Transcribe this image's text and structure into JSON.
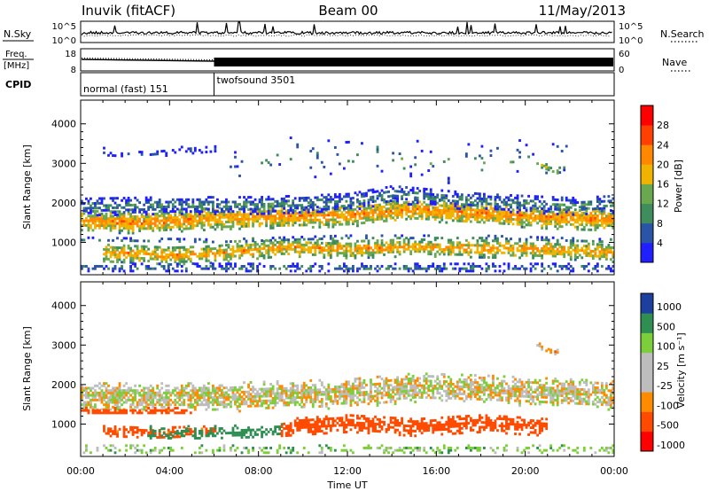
{
  "header": {
    "station": "Inuvik (fitACF)",
    "beam": "Beam 00",
    "date": "11/May/2013"
  },
  "nsky_panel": {
    "label": "N.Sky",
    "left_ticks": [
      "10^5",
      "10^0"
    ],
    "right_ticks": [
      "10^5",
      "10^0"
    ],
    "right_label": "N.Search",
    "right_label_style": "dotted"
  },
  "freq_panel": {
    "label_line1": "Freq.",
    "label_line2": "[MHz]",
    "left_ticks": [
      "18",
      "8"
    ],
    "right_ticks": [
      "60",
      "0"
    ],
    "right_label": "Nave",
    "right_label_style": "dotted"
  },
  "cpid_panel": {
    "label": "CPID",
    "modes": [
      {
        "name": "normal (fast) 151",
        "start_hour": 0,
        "end_hour": 6
      },
      {
        "name": "twofsound 3501",
        "start_hour": 6,
        "end_hour": 24
      }
    ]
  },
  "axes": {
    "xlabel": "Time UT",
    "x_ticks": [
      "00:00",
      "04:00",
      "08:00",
      "12:00",
      "16:00",
      "20:00",
      "00:00"
    ],
    "ylabel": "Slant Range [km]",
    "y_ticks": [
      "1000",
      "2000",
      "3000",
      "4000"
    ]
  },
  "colors": {
    "power": [
      "#1f1fff",
      "#2a54a8",
      "#3f8c5c",
      "#6aa84f",
      "#f0b400",
      "#ff8800",
      "#ff4000",
      "#ff0000"
    ],
    "velocity": [
      "#ff0000",
      "#ff4a00",
      "#ff8c00",
      "#bdbdbd",
      "#bdbdbd",
      "#7ccf3a",
      "#2f8f52",
      "#1c3fa0"
    ]
  },
  "chart_data": [
    {
      "type": "line",
      "name": "N.Sky / N.Search",
      "x_range": [
        0,
        24
      ],
      "yscale": "log",
      "ylim": [
        "10^0",
        "10^5"
      ]
    },
    {
      "type": "line",
      "name": "Freq. / Nave",
      "x_range": [
        0,
        24
      ],
      "ylim_left": [
        8,
        18
      ],
      "ylim_right": [
        0,
        60
      ]
    },
    {
      "type": "heatmap",
      "name": "Power",
      "xlabel": "Time UT",
      "ylabel": "Slant Range [km]",
      "x_range": [
        0,
        24
      ],
      "y_range": [
        180,
        4600
      ],
      "colorbar": {
        "label": "Power [dB]",
        "ticks": [
          "28",
          "24",
          "20",
          "16",
          "12",
          "8",
          "4"
        ],
        "range": [
          0,
          32
        ]
      },
      "bands": [
        {
          "start": 0,
          "end": 24,
          "centers": [
            [
              0,
              1500
            ],
            [
              3,
              1480
            ],
            [
              6,
              1580
            ],
            [
              9,
              1620
            ],
            [
              12,
              1650
            ],
            [
              15,
              1800
            ],
            [
              18,
              1700
            ],
            [
              21,
              1600
            ],
            [
              24,
              1550
            ]
          ],
          "half_width": 260,
          "value": 22,
          "density": 0.92
        },
        {
          "start": 0,
          "end": 24,
          "centers": [
            [
              0,
              1880
            ],
            [
              4,
              1920
            ],
            [
              8,
              1920
            ],
            [
              12,
              2000
            ],
            [
              14,
              2200
            ],
            [
              18,
              2000
            ],
            [
              22,
              1900
            ],
            [
              24,
              1950
            ]
          ],
          "half_width": 220,
          "value": 10,
          "density": 0.55
        },
        {
          "start": 1,
          "end": 24,
          "centers": [
            [
              1,
              720
            ],
            [
              4,
              640
            ],
            [
              6,
              680
            ],
            [
              9,
              850
            ],
            [
              12,
              800
            ],
            [
              15,
              850
            ],
            [
              18,
              820
            ],
            [
              21,
              800
            ],
            [
              24,
              700
            ]
          ],
          "half_width": 220,
          "value": 21,
          "density": 0.78
        },
        {
          "start": 0,
          "end": 24,
          "centers": [
            [
              0,
              1050
            ],
            [
              6,
              1000
            ],
            [
              12,
              1100
            ],
            [
              18,
              1100
            ],
            [
              24,
              1000
            ]
          ],
          "half_width": 60,
          "value": 12,
          "density": 0.35
        },
        {
          "start": 0,
          "end": 24,
          "centers": [
            [
              0,
              330
            ],
            [
              24,
              330
            ]
          ],
          "half_width": 110,
          "value": 9,
          "density": 0.45
        },
        {
          "start": 1,
          "end": 6,
          "centers": [
            [
              1,
              3250
            ],
            [
              3,
              3200
            ],
            [
              6,
              3350
            ]
          ],
          "half_width": 100,
          "value": 6,
          "density": 0.3
        },
        {
          "start": 6.5,
          "end": 22,
          "centers": [
            [
              6.5,
              3050
            ],
            [
              12,
              3200
            ],
            [
              16,
              3000
            ],
            [
              22,
              3100
            ]
          ],
          "half_width": 500,
          "value": 10,
          "density": 0.05
        },
        {
          "start": 20.5,
          "end": 21.5,
          "centers": [
            [
              20.5,
              2950
            ],
            [
              21.5,
              2750
            ]
          ],
          "half_width": 80,
          "value": 18,
          "density": 0.6
        }
      ]
    },
    {
      "type": "heatmap",
      "name": "Velocity",
      "xlabel": "Time UT",
      "ylabel": "Slant Range [km]",
      "x_range": [
        0,
        24
      ],
      "y_range": [
        180,
        4600
      ],
      "colorbar": {
        "label": "Velocity [m s⁻¹]",
        "ticks": [
          "1000",
          "500",
          "100",
          "25",
          "-25",
          "-100",
          "-500",
          "-1000"
        ],
        "range": [
          -1000,
          1000
        ]
      },
      "bands": [
        {
          "start": 0,
          "end": 24,
          "centers": [
            [
              0,
              1650
            ],
            [
              6,
              1650
            ],
            [
              12,
              1750
            ],
            [
              15,
              1900
            ],
            [
              18,
              1850
            ],
            [
              24,
              1700
            ]
          ],
          "half_width": 330,
          "value": 0,
          "density": 0.82
        },
        {
          "start": 0,
          "end": 5,
          "centers": [
            [
              0,
              1300
            ],
            [
              5,
              1300
            ]
          ],
          "half_width": 80,
          "value": -300,
          "density": 0.7
        },
        {
          "start": 1,
          "end": 6,
          "centers": [
            [
              1,
              800
            ],
            [
              3,
              750
            ],
            [
              6,
              800
            ]
          ],
          "half_width": 140,
          "value": -150,
          "density": 0.6
        },
        {
          "start": 3,
          "end": 9,
          "centers": [
            [
              3,
              750
            ],
            [
              6,
              750
            ],
            [
              9,
              800
            ]
          ],
          "half_width": 150,
          "value": 220,
          "density": 0.5
        },
        {
          "start": 9,
          "end": 21,
          "centers": [
            [
              9,
              900
            ],
            [
              12,
              1000
            ],
            [
              15,
              900
            ],
            [
              18,
              1000
            ],
            [
              21,
              900
            ]
          ],
          "half_width": 220,
          "value": -200,
          "density": 0.75
        },
        {
          "start": 0,
          "end": 24,
          "centers": [
            [
              0,
              330
            ],
            [
              24,
              330
            ]
          ],
          "half_width": 110,
          "value": 60,
          "density": 0.35
        },
        {
          "start": 20.5,
          "end": 21.5,
          "centers": [
            [
              20.5,
              2950
            ],
            [
              21.5,
              2750
            ]
          ],
          "half_width": 80,
          "value": -60,
          "density": 0.5
        }
      ]
    }
  ]
}
